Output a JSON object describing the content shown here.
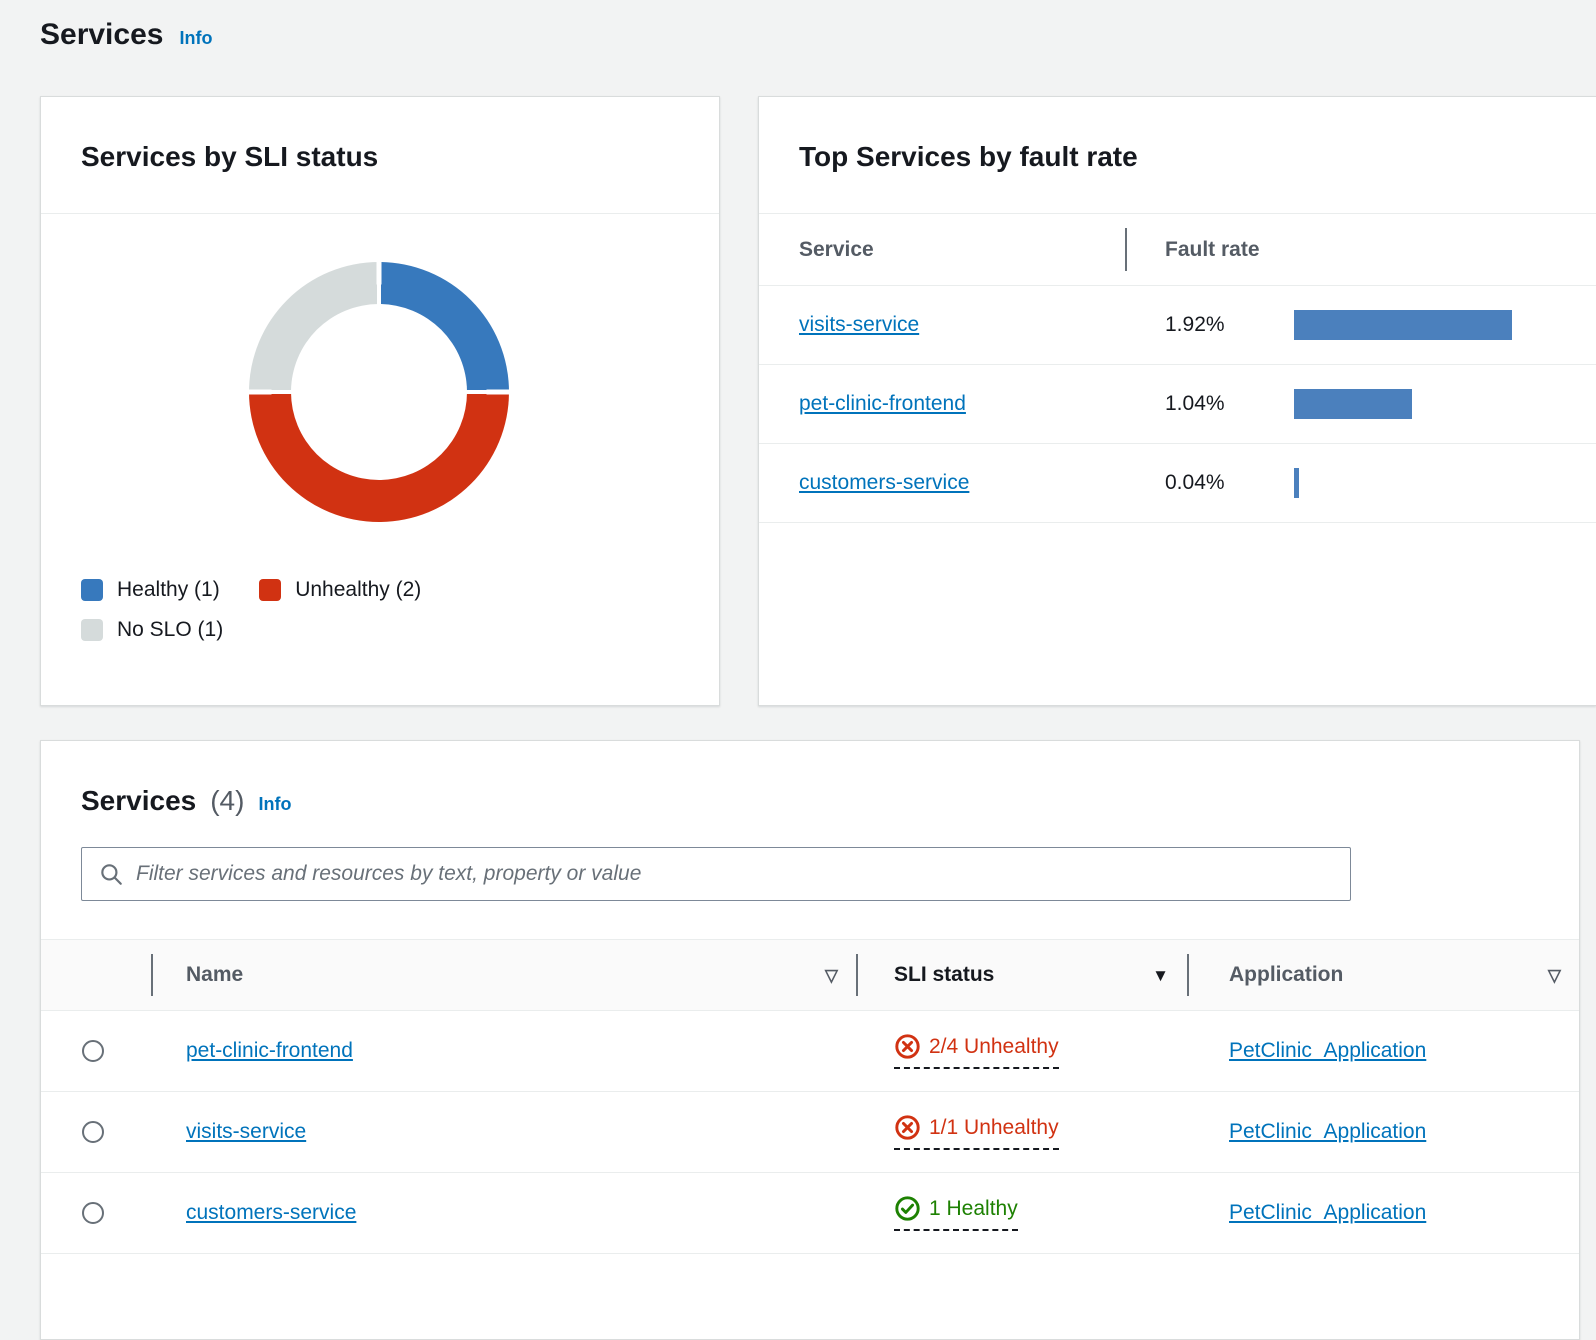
{
  "header": {
    "title": "Services",
    "info_label": "Info"
  },
  "colors": {
    "link_blue": "#0073bb",
    "healthy_blue": "#3779bd",
    "unhealthy_red": "#d13212",
    "no_slo_gray": "#d5dbdb",
    "bar_blue": "#4b80bd",
    "healthy_green": "#1d8102",
    "page_background": "#f2f3f3"
  },
  "sli_card": {
    "title": "Services by SLI status",
    "legend": [
      {
        "label": "Healthy (1)",
        "color": "#3779bd"
      },
      {
        "label": "Unhealthy (2)",
        "color": "#d13212"
      },
      {
        "label": "No SLO (1)",
        "color": "#d5dbdb"
      }
    ]
  },
  "fault_card": {
    "title": "Top Services by fault rate",
    "columns": {
      "service": "Service",
      "rate": "Fault rate"
    },
    "rows": [
      {
        "service": "visits-service",
        "rate": "1.92%"
      },
      {
        "service": "pet-clinic-frontend",
        "rate": "1.04%"
      },
      {
        "service": "customers-service",
        "rate": "0.04%"
      }
    ]
  },
  "services_table": {
    "title": "Services",
    "count": "(4)",
    "info_label": "Info",
    "filter_placeholder": "Filter services and resources by text, property or value",
    "filter_value": "",
    "columns": {
      "name": "Name",
      "sli": "SLI status",
      "application": "Application"
    },
    "rows": [
      {
        "name": "pet-clinic-frontend",
        "sli_status": "2/4 Unhealthy",
        "sli_state": "unhealthy",
        "application": "PetClinic_Application"
      },
      {
        "name": "visits-service",
        "sli_status": "1/1 Unhealthy",
        "sli_state": "unhealthy",
        "application": "PetClinic_Application"
      },
      {
        "name": "customers-service",
        "sli_status": "1 Healthy",
        "sli_state": "healthy",
        "application": "PetClinic_Application"
      }
    ]
  },
  "chart_data": [
    {
      "type": "pie",
      "title": "Services by SLI status",
      "labels": [
        "Healthy",
        "Unhealthy",
        "No SLO"
      ],
      "values": [
        1,
        2,
        1
      ],
      "colors": [
        "#3779bd",
        "#d13212",
        "#d5dbdb"
      ],
      "donut": true,
      "start_angle_deg": 0,
      "legend_position": "bottom"
    },
    {
      "type": "bar",
      "title": "Top Services by fault rate",
      "orientation": "horizontal",
      "categories": [
        "visits-service",
        "pet-clinic-frontend",
        "customers-service"
      ],
      "values": [
        1.92,
        1.04,
        0.04
      ],
      "unit": "%",
      "xlabel": "Fault rate",
      "xlim": [
        0,
        1.92
      ],
      "bar_color": "#4b80bd",
      "grid": false
    }
  ]
}
